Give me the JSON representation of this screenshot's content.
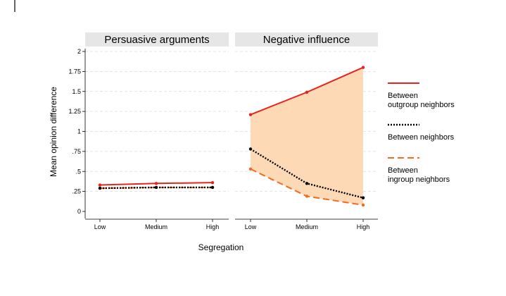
{
  "chart_data": {
    "type": "line",
    "ylabel": "Mean opinion difference",
    "xlabel": "Segregation",
    "categories": [
      "Low",
      "Medium",
      "High"
    ],
    "ylim": [
      0,
      2
    ],
    "yticks": [
      0,
      0.25,
      0.5,
      0.75,
      1,
      1.25,
      1.5,
      1.75,
      2
    ],
    "ytick_labels": [
      "0",
      ".25",
      ".5",
      ".75",
      "1",
      "1.25",
      "1.5",
      "1.75",
      "2"
    ],
    "grid": "horizontal-dashed",
    "legend_position": "right",
    "shaded_region": {
      "between": [
        "outgroup",
        "ingroup"
      ],
      "color": "#fdd9b5"
    },
    "legend": [
      {
        "key": "outgroup",
        "line1": "Between",
        "line2": "outgroup neighbors",
        "color": "#e8231c",
        "style": "solid"
      },
      {
        "key": "neighbors",
        "line1": "Between neighbors",
        "line2": "",
        "color": "#000000",
        "style": "dotted"
      },
      {
        "key": "ingroup",
        "line1": "Between",
        "line2": "ingroup neighbors",
        "color": "#f26b1d",
        "style": "dashed"
      }
    ],
    "panels": [
      {
        "title": "Persuasive arguments",
        "shaded": false,
        "series": [
          {
            "key": "outgroup",
            "values": [
              0.33,
              0.35,
              0.36
            ]
          },
          {
            "key": "neighbors",
            "values": [
              0.29,
              0.3,
              0.3
            ]
          },
          {
            "key": "ingroup",
            "values": [
              0.29,
              0.3,
              0.3
            ]
          }
        ]
      },
      {
        "title": "Negative influence",
        "shaded": true,
        "series": [
          {
            "key": "outgroup",
            "values": [
              1.21,
              1.49,
              1.8
            ]
          },
          {
            "key": "neighbors",
            "values": [
              0.78,
              0.35,
              0.17
            ]
          },
          {
            "key": "ingroup",
            "values": [
              0.53,
              0.19,
              0.08
            ]
          }
        ]
      }
    ]
  }
}
